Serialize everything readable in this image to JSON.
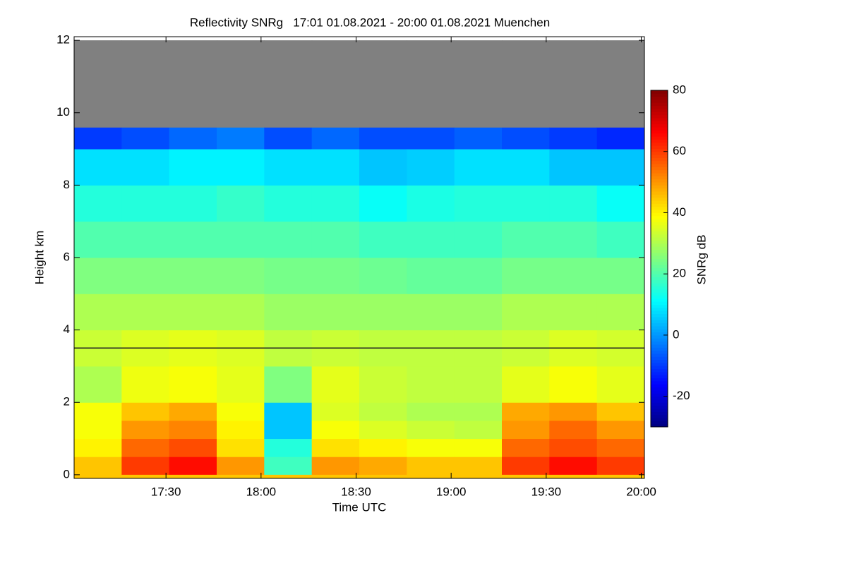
{
  "chart_data": {
    "type": "heatmap",
    "title": "Reflectivity SNRg   17:01 01.08.2021 - 20:00 01.08.2021 Muenchen",
    "x_label": "Time UTC",
    "y_label": "Height km",
    "xlim": [
      1021,
      1201
    ],
    "xticks": [
      {
        "value": 1050,
        "label": "17:30"
      },
      {
        "value": 1080,
        "label": "18:00"
      },
      {
        "value": 1110,
        "label": "18:30"
      },
      {
        "value": 1140,
        "label": "19:00"
      },
      {
        "value": 1170,
        "label": "19:30"
      },
      {
        "value": 1200,
        "label": "20:00"
      }
    ],
    "ylim": [
      -0.1,
      12.1
    ],
    "yticks": [
      0,
      2,
      4,
      6,
      8,
      10,
      12
    ],
    "x_bins": [
      1021,
      1036,
      1051,
      1066,
      1081,
      1096,
      1111,
      1126,
      1141,
      1156,
      1171,
      1186,
      1201
    ],
    "y_bins": [
      0,
      0.5,
      1,
      1.5,
      2,
      3,
      4,
      5,
      6,
      7,
      8,
      9,
      9.6,
      12
    ],
    "z": [
      [
        45,
        40,
        38,
        38,
        30,
        33,
        30,
        25,
        20,
        15,
        8,
        -10,
        null
      ],
      [
        60,
        55,
        50,
        45,
        37,
        35,
        30,
        25,
        20,
        15,
        8,
        -8,
        null
      ],
      [
        65,
        58,
        52,
        48,
        38,
        36,
        30,
        25,
        20,
        15,
        10,
        -5,
        null
      ],
      [
        50,
        42,
        40,
        38,
        36,
        35,
        30,
        25,
        20,
        17,
        10,
        -3,
        null
      ],
      [
        18,
        15,
        5,
        5,
        25,
        32,
        28,
        24,
        20,
        15,
        8,
        -8,
        null
      ],
      [
        50,
        42,
        38,
        35,
        36,
        33,
        28,
        24,
        20,
        15,
        8,
        -5,
        null
      ],
      [
        48,
        40,
        35,
        32,
        33,
        32,
        28,
        23,
        18,
        12,
        5,
        -8,
        null
      ],
      [
        45,
        38,
        33,
        30,
        32,
        32,
        28,
        22,
        18,
        14,
        6,
        -8,
        null
      ],
      [
        45,
        38,
        32,
        30,
        32,
        32,
        28,
        22,
        18,
        15,
        8,
        -6,
        null
      ],
      [
        60,
        55,
        50,
        48,
        36,
        33,
        30,
        24,
        20,
        15,
        8,
        -8,
        null
      ],
      [
        65,
        58,
        55,
        50,
        38,
        35,
        30,
        24,
        20,
        15,
        5,
        -10,
        null
      ],
      [
        60,
        55,
        50,
        45,
        36,
        34,
        30,
        24,
        18,
        12,
        5,
        -12,
        null
      ]
    ],
    "colormap": "jet",
    "missing_color": "#808080",
    "hline": 3.5,
    "colorbar": {
      "label": "SNRg dB",
      "lim": [
        -30,
        80
      ],
      "ticks": [
        -20,
        0,
        20,
        40,
        60,
        80
      ]
    }
  }
}
